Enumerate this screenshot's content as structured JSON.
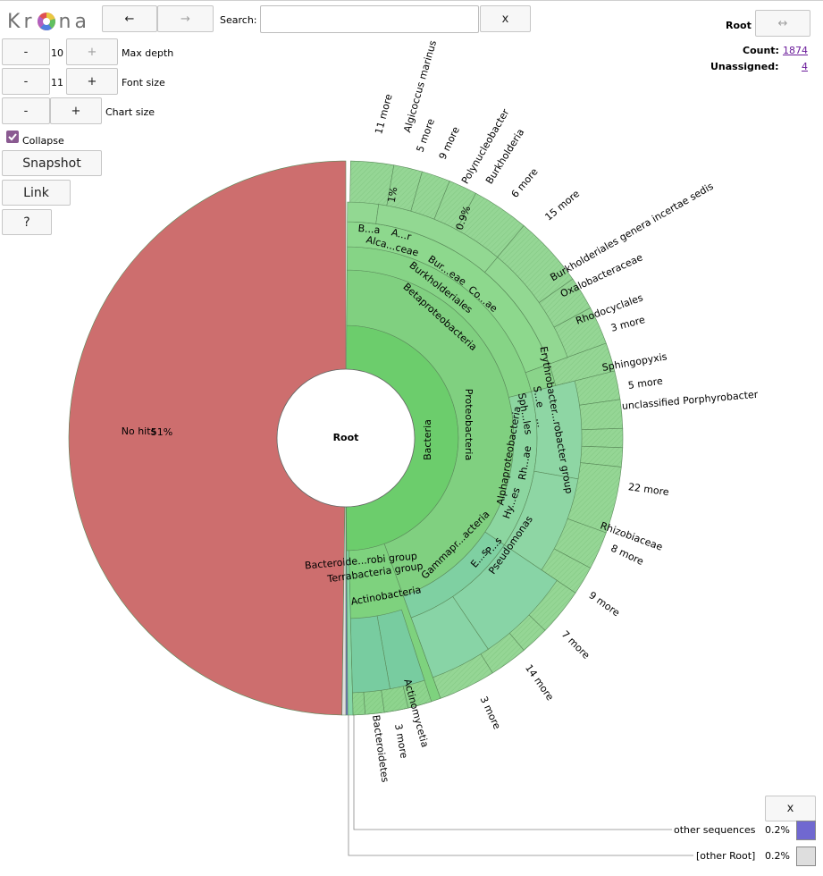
{
  "app": {
    "logo_text": [
      "K",
      "r",
      "n",
      "a"
    ],
    "nav": {
      "back_label": "←",
      "forward_label": "→"
    },
    "search": {
      "label": "Search:",
      "value": "",
      "clear_label": "x"
    },
    "max_depth": {
      "decrement_label": "-",
      "value": "10",
      "increment_label": "+",
      "label": "Max depth"
    },
    "font_size": {
      "decrement_label": "-",
      "value": "11",
      "increment_label": "+",
      "label": "Font size"
    },
    "chart_size": {
      "decrement_label": "-",
      "increment_label": "+",
      "label": "Chart size"
    },
    "collapse": {
      "label": "Collapse",
      "checked": true
    },
    "buttons": {
      "snapshot": "Snapshot",
      "link": "Link",
      "help": "?"
    }
  },
  "details": {
    "root_label": "Root",
    "expand_label": "↔",
    "count_label": "Count:",
    "count_value": "1874",
    "unassigned_label": "Unassigned:",
    "unassigned_value": "4"
  },
  "key_panel": {
    "close_label": "x",
    "items": [
      {
        "label": "other sequences",
        "percent": "0.2%",
        "color": "#7068d0"
      },
      {
        "label": "[other Root]",
        "percent": "0.2%",
        "color": "#dedede"
      }
    ]
  },
  "chart_data": {
    "type": "sunburst",
    "root": "Root",
    "colors": {
      "no_hits": "#cd6e6e",
      "bacteria": "#6ccd6c",
      "proteo": "#80d080",
      "hatched": "#90d890"
    },
    "rings": [
      {
        "name": "No hits",
        "percent": "51%",
        "value": 51
      },
      {
        "name": "Bacteria",
        "value": 48.6
      },
      {
        "name": "Proteobacteria"
      },
      {
        "name": "Terrabacteria group"
      },
      {
        "name": "Bacteroide...robi group"
      },
      {
        "name": "Betaproteobacteria"
      },
      {
        "name": "Alphaproteobacteria"
      },
      {
        "name": "Gammapr...acteria"
      },
      {
        "name": "Actinobacteria"
      },
      {
        "name": "Burkholderiales"
      },
      {
        "name": "Alca...ceae"
      },
      {
        "name": "Bur...eae"
      },
      {
        "name": "Co...ae"
      },
      {
        "name": "B...a"
      },
      {
        "name": "A...r"
      },
      {
        "name": "Erythrobacter...robacter group"
      },
      {
        "name": "Sph...les"
      },
      {
        "name": "S...e"
      },
      {
        "name": "Hy...es"
      },
      {
        "name": "Rh...ae"
      },
      {
        "name": "E...s"
      },
      {
        "name": "P...s"
      },
      {
        "name": "Pseudomonas"
      },
      {
        "name": "..."
      },
      {
        "name": "0.9%"
      },
      {
        "name": "1%"
      }
    ],
    "outer_labels": [
      {
        "text": "11 more"
      },
      {
        "text": "Algicoccus marinus"
      },
      {
        "text": "5 more"
      },
      {
        "text": "9 more"
      },
      {
        "text": "Polynucleobacter"
      },
      {
        "text": "Burkholderia"
      },
      {
        "text": "6 more"
      },
      {
        "text": "15 more"
      },
      {
        "text": "Burkholderiales genera incertae sedis"
      },
      {
        "text": "Oxalobacteraceae"
      },
      {
        "text": "Rhodocyclales"
      },
      {
        "text": "3 more"
      },
      {
        "text": "Sphingopyxis"
      },
      {
        "text": "5 more"
      },
      {
        "text": "unclassified Porphyrobacter"
      },
      {
        "text": "22 more"
      },
      {
        "text": "Rhizobiaceae"
      },
      {
        "text": "8 more"
      },
      {
        "text": "9 more"
      },
      {
        "text": "7 more"
      },
      {
        "text": "14 more"
      },
      {
        "text": "3 more"
      },
      {
        "text": "Actinomycetia"
      },
      {
        "text": "3 more"
      },
      {
        "text": "Bacteroidetes"
      }
    ]
  }
}
